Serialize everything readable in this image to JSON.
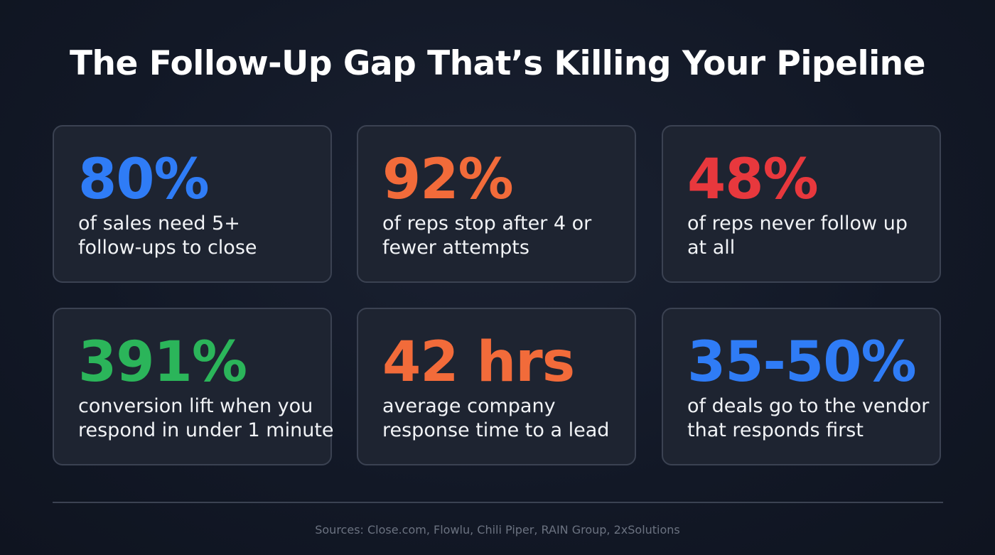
{
  "header": {
    "title": "The Follow-Up Gap That’s Killing Your Pipeline"
  },
  "cards": [
    {
      "stat": "80%",
      "color": "#2f7cf6",
      "lines": [
        "of sales need 5+",
        "follow-ups to close"
      ]
    },
    {
      "stat": "92%",
      "color": "#f26b3a",
      "lines": [
        "of reps stop after 4 or",
        "fewer attempts"
      ]
    },
    {
      "stat": "48%",
      "color": "#e8383d",
      "lines": [
        "of reps never follow up",
        "at all"
      ]
    },
    {
      "stat": "391%",
      "color": "#2bb55a",
      "lines": [
        "conversion lift when you",
        "respond in under 1 minute"
      ]
    },
    {
      "stat": "42 hrs",
      "color": "#f26b3a",
      "lines": [
        "average company",
        "response time to a lead"
      ]
    },
    {
      "stat": "35-50%",
      "color": "#2f7cf6",
      "lines": [
        "of deals go to the vendor",
        "that responds first"
      ]
    }
  ],
  "footer": {
    "sources": "Sources: Close.com, Flowlu, Chili Piper, RAIN Group, 2xSolutions"
  }
}
